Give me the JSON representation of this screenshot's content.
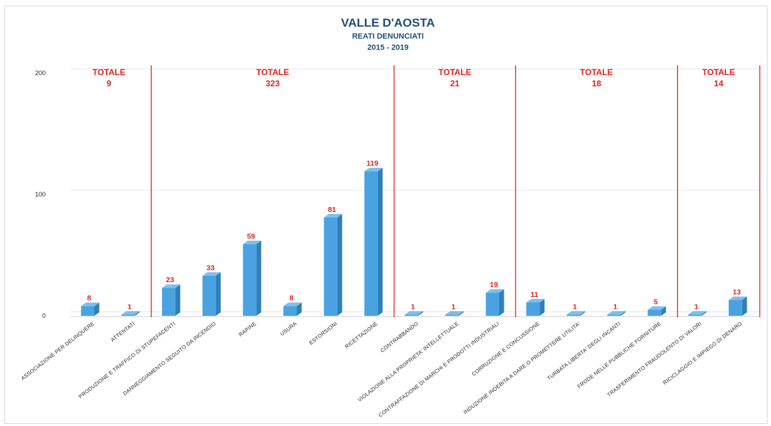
{
  "chart_data": {
    "type": "bar",
    "title": "VALLE D'AOSTA",
    "subtitle": "REATI DENUNCIATI",
    "period": "2015 - 2019",
    "ylim": [
      0,
      200
    ],
    "yticks": [
      0,
      100,
      200
    ],
    "grid": true,
    "categories": [
      "ASSOCIAZIONE PER DELINQUERE",
      "ATTENTATI",
      "PRODUZIONE E TRAFFICO DI STUPEFACENTI",
      "DANNEGGIAMENTO SEGUITO DA INCENDIO",
      "RAPINE",
      "USURA",
      "ESTORSIONI",
      "RICETTAZIONE",
      "CONTRABBANDO",
      "VIOLAZIONE ALLA PROPRIETA' INTELLETTUALE",
      "CONTRAFFAZIONE DI MARCHI E PRODOTTI INDUSTRIALI",
      "CORRUZIONE E CONCUSSIONE",
      "INDUZIONE INDEBITA A DARE O PROMETTERE UTILITA'",
      "TURBATA LIBERTA' DEGLI INCANTI",
      "FRODE NELLE PUBBLICHE FORNITURE",
      "TRASFERIMENTO FRAUDOLENTO DI VALORI",
      "RICICLAGGIO E IMPIEGO DI DENARO"
    ],
    "values": [
      8,
      1,
      23,
      33,
      59,
      8,
      81,
      119,
      1,
      1,
      19,
      11,
      1,
      1,
      5,
      1,
      13
    ],
    "groups": [
      {
        "label": "TOTALE",
        "total": "9",
        "start": 0,
        "end": 1
      },
      {
        "label": "TOTALE",
        "total": "323",
        "start": 2,
        "end": 7
      },
      {
        "label": "TOTALE",
        "total": "21",
        "start": 8,
        "end": 10
      },
      {
        "label": "TOTALE",
        "total": "18",
        "start": 11,
        "end": 14
      },
      {
        "label": "TOTALE",
        "total": "14",
        "start": 15,
        "end": 16
      }
    ],
    "colors": {
      "bar_front": "#4aa3e0",
      "bar_side": "#2f7fb9",
      "bar_top": "#7cc0ec",
      "totals": "#e22222",
      "separator": "#e22222",
      "title": "#1f4e79",
      "gridline": "#e6e6e6"
    }
  }
}
